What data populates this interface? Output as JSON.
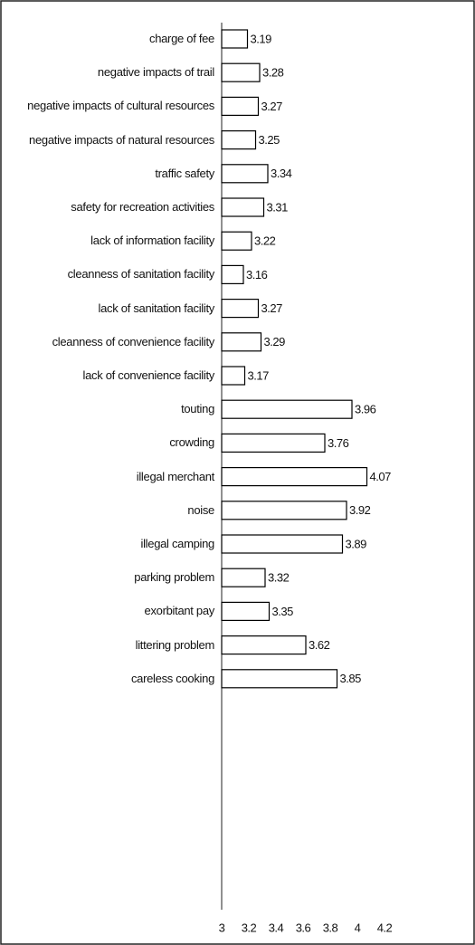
{
  "chart_data": {
    "type": "bar",
    "orientation": "horizontal",
    "categories": [
      "charge of fee",
      "negative impacts of trail",
      "negative impacts of cultural resources",
      "negative impacts of natural resources",
      "traffic safety",
      "safety for recreation activities",
      "lack of information facility",
      "cleanness of sanitation facility",
      "lack of sanitation facility",
      "cleanness of convenience facility",
      "lack of convenience facility",
      "touting",
      "crowding",
      "illegal merchant",
      "noise",
      "illegal camping",
      "parking problem",
      "exorbitant pay",
      "littering problem",
      "careless cooking"
    ],
    "values": [
      3.19,
      3.28,
      3.27,
      3.25,
      3.34,
      3.31,
      3.22,
      3.16,
      3.27,
      3.29,
      3.17,
      3.96,
      3.76,
      4.07,
      3.92,
      3.89,
      3.32,
      3.35,
      3.62,
      3.85
    ],
    "color": "#ffffff",
    "edge_color": "#000000",
    "xlim": [
      3,
      4.2
    ],
    "xticks": [
      3,
      3.2,
      3.4,
      3.6,
      3.8,
      4,
      4.2
    ]
  }
}
